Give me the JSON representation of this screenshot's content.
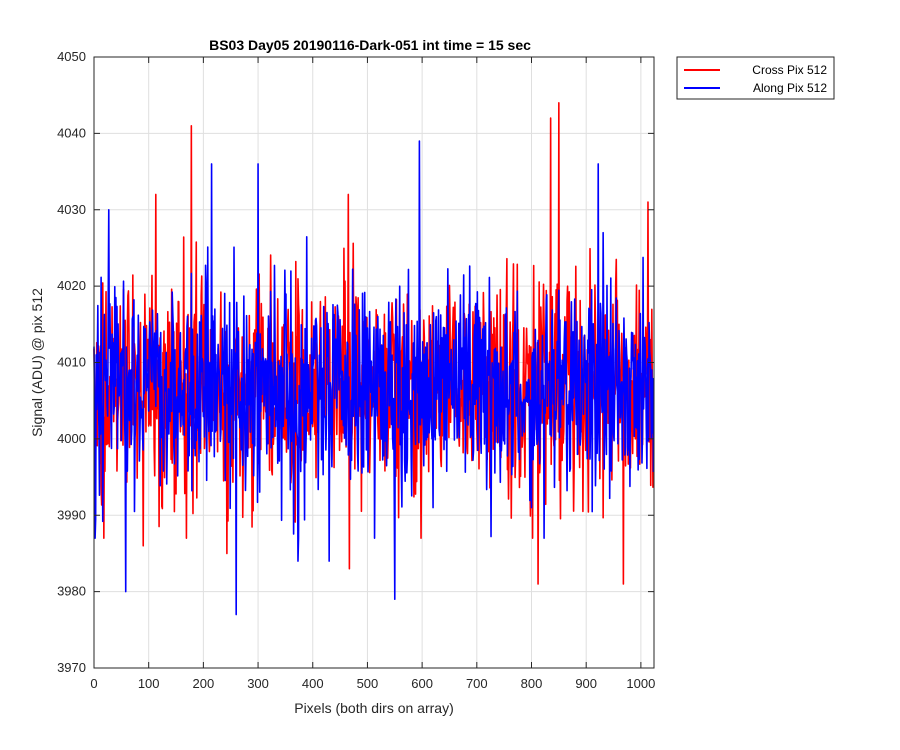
{
  "chart_data": {
    "type": "line",
    "title": "BS03 Day05 20190116-Dark-051 int time = 15 sec",
    "xlabel": "Pixels (both dirs on array)",
    "ylabel": "Signal (ADU) @ pix 512",
    "xlim": [
      0,
      1024
    ],
    "ylim": [
      3970,
      4050
    ],
    "xticks": [
      "0",
      "100",
      "200",
      "300",
      "400",
      "500",
      "600",
      "700",
      "800",
      "900",
      "1000"
    ],
    "yticks": [
      "3970",
      "3980",
      "3990",
      "4000",
      "4010",
      "4020",
      "4030",
      "4040",
      "4050"
    ],
    "grid": true,
    "legend_position": "outside-top-right",
    "noise_model": {
      "n_points": 1024,
      "mean": 4007,
      "std": 7
    },
    "series": [
      {
        "name": "Cross Pix 512",
        "color": "#ff0000",
        "spikes": [
          {
            "x": 178,
            "y": 4041
          },
          {
            "x": 850,
            "y": 4044
          },
          {
            "x": 835,
            "y": 4042
          },
          {
            "x": 113,
            "y": 4032
          },
          {
            "x": 465,
            "y": 4032
          },
          {
            "x": 1013,
            "y": 4031
          },
          {
            "x": 812,
            "y": 3981
          },
          {
            "x": 968,
            "y": 3981
          },
          {
            "x": 243,
            "y": 3985
          },
          {
            "x": 467,
            "y": 3983
          },
          {
            "x": 18,
            "y": 3987
          },
          {
            "x": 90,
            "y": 3986
          }
        ]
      },
      {
        "name": "Along Pix 512",
        "color": "#0000ff",
        "spikes": [
          {
            "x": 595,
            "y": 4039
          },
          {
            "x": 215,
            "y": 4036
          },
          {
            "x": 300,
            "y": 4036
          },
          {
            "x": 922,
            "y": 4036
          },
          {
            "x": 27,
            "y": 4030
          },
          {
            "x": 58,
            "y": 3980
          },
          {
            "x": 260,
            "y": 3977
          },
          {
            "x": 550,
            "y": 3979
          },
          {
            "x": 430,
            "y": 3984
          },
          {
            "x": 373,
            "y": 3984
          },
          {
            "x": 620,
            "y": 3991
          },
          {
            "x": 800,
            "y": 3991
          }
        ]
      }
    ]
  }
}
